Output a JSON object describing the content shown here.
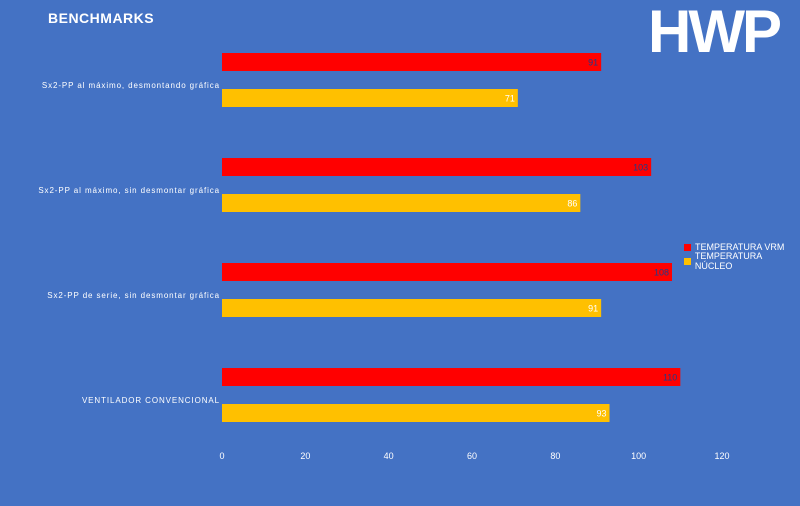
{
  "chart_data": {
    "type": "bar",
    "orientation": "horizontal",
    "title": "BENCHMARKS",
    "categories": [
      "Sx2-PP al máximo, desmontando gráfica",
      "Sx2-PP al máximo, sin desmontar gráfica",
      "Sx2-PP de serie, sin desmontar gráfica",
      "VENTILADOR CONVENCIONAL"
    ],
    "series": [
      {
        "name": "TEMPERATURA VRM",
        "color": "#FF0000",
        "values": [
          91,
          103,
          108,
          110
        ]
      },
      {
        "name": "TEMPERATURA NÚCLEO",
        "color": "#FFC000",
        "values": [
          71,
          86,
          91,
          93
        ]
      }
    ],
    "xlim": [
      0,
      120
    ],
    "xticks": [
      0,
      20,
      40,
      60,
      80,
      100,
      120
    ],
    "grid": false,
    "legend": "right"
  },
  "logo_text": "HWP"
}
